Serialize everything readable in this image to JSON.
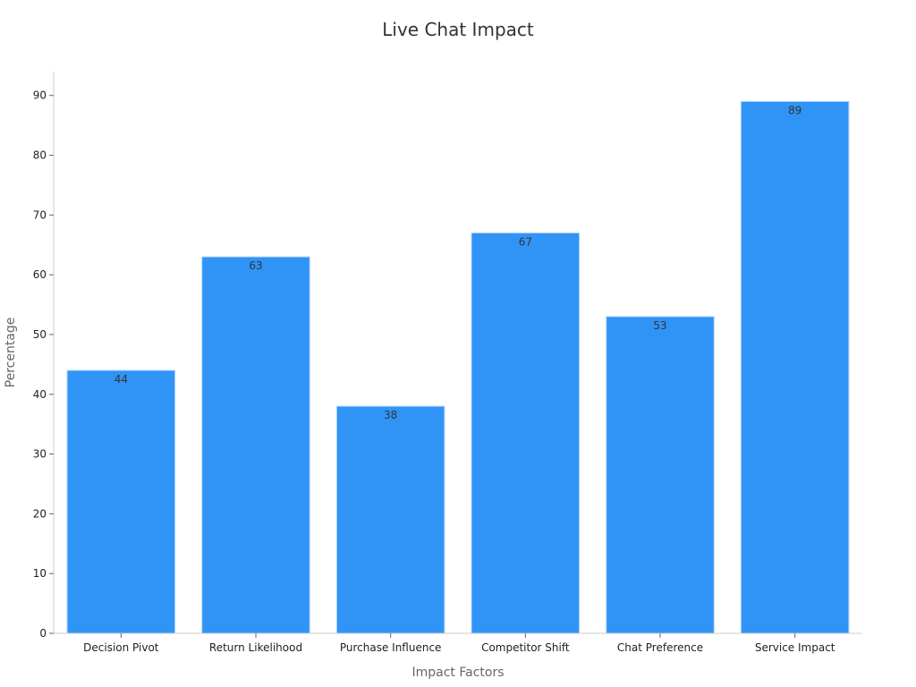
{
  "chart_data": {
    "type": "bar",
    "title": "Live Chat Impact",
    "xlabel": "Impact Factors",
    "ylabel": "Percentage",
    "categories": [
      "Decision Pivot",
      "Return Likelihood",
      "Purchase Influence",
      "Competitor Shift",
      "Chat Preference",
      "Service Impact"
    ],
    "values": [
      44,
      63,
      38,
      67,
      53,
      89
    ],
    "ylim": [
      0,
      94
    ],
    "yticks": [
      0,
      10,
      20,
      30,
      40,
      50,
      60,
      70,
      80,
      90
    ],
    "bar_color": "#3094f7",
    "grid": false,
    "legend": "none"
  }
}
